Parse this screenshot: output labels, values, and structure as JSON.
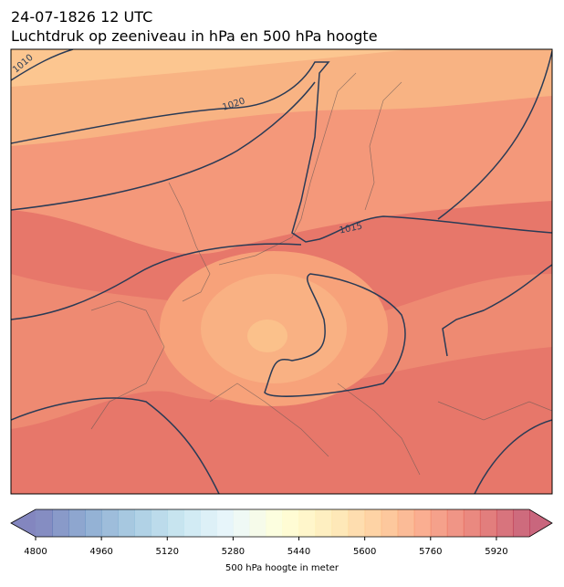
{
  "title": [
    "24-07-1826 12 UTC",
    "Luchtdruk op zeeniveau in hPa en 500 hPa hoogte"
  ],
  "contour_labels": [
    1010,
    1020,
    1015
  ],
  "colorbar": {
    "label": "500 hPa hoogte in meter",
    "lim": [
      4800,
      6000
    ],
    "ticks": [
      4800,
      4960,
      5120,
      5280,
      5440,
      5600,
      5760,
      5920
    ],
    "colormap": [
      "#313695",
      "#4575b4",
      "#74add1",
      "#abd9e9",
      "#e0f3f8",
      "#ffffbf",
      "#fee090",
      "#fdae61",
      "#f46d43",
      "#d73027",
      "#a50026"
    ]
  }
}
